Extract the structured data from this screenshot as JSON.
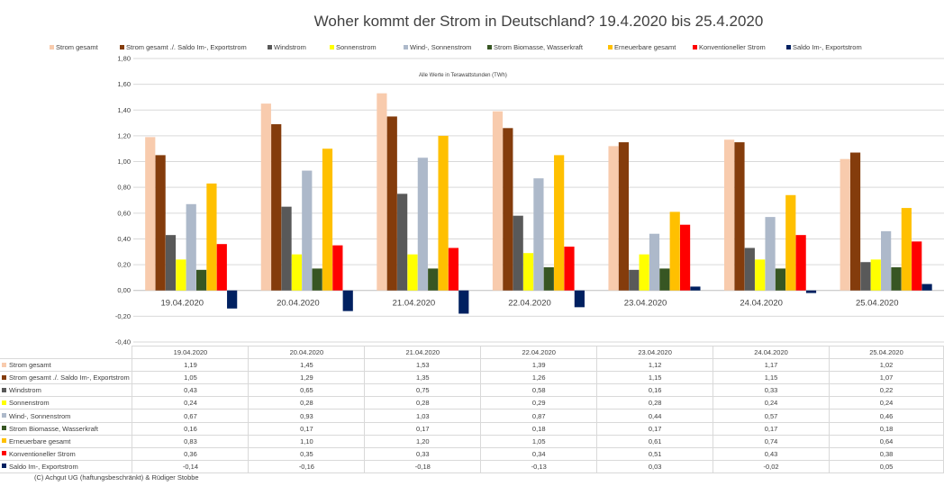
{
  "chart_data": {
    "type": "bar",
    "title": "Woher kommt der Strom in Deutschland? 19.4.2020 bis 25.4.2020",
    "subtitle": "Alle Werte in Terawattstunden (TWh)",
    "xlabel": "",
    "ylabel": "",
    "ylim": [
      -0.4,
      1.8
    ],
    "yticks": [
      "1,80",
      "1,60",
      "1,40",
      "1,20",
      "1,00",
      "0,80",
      "0,60",
      "0,40",
      "0,20",
      "0,00",
      "-0,20",
      "-0,40"
    ],
    "categories": [
      "19.04.2020",
      "20.04.2020",
      "21.04.2020",
      "22.04.2020",
      "23.04.2020",
      "24.04.2020",
      "25.04.2020"
    ],
    "legend_position": "top",
    "series": [
      {
        "name": "Strom gesamt",
        "color": "#f8cbad",
        "values": [
          1.19,
          1.45,
          1.53,
          1.39,
          1.12,
          1.17,
          1.02
        ],
        "labels": [
          "1,19",
          "1,45",
          "1,53",
          "1,39",
          "1,12",
          "1,17",
          "1,02"
        ]
      },
      {
        "name": "Strom gesamt ./. Saldo Im-, Exportstrom",
        "color": "#843c0c",
        "values": [
          1.05,
          1.29,
          1.35,
          1.26,
          1.15,
          1.15,
          1.07
        ],
        "labels": [
          "1,05",
          "1,29",
          "1,35",
          "1,26",
          "1,15",
          "1,15",
          "1,07"
        ]
      },
      {
        "name": "Windstrom",
        "color": "#595959",
        "values": [
          0.43,
          0.65,
          0.75,
          0.58,
          0.16,
          0.33,
          0.22
        ],
        "labels": [
          "0,43",
          "0,65",
          "0,75",
          "0,58",
          "0,16",
          "0,33",
          "0,22"
        ]
      },
      {
        "name": "Sonnenstrom",
        "color": "#ffff00",
        "values": [
          0.24,
          0.28,
          0.28,
          0.29,
          0.28,
          0.24,
          0.24
        ],
        "labels": [
          "0,24",
          "0,28",
          "0,28",
          "0,29",
          "0,28",
          "0,24",
          "0,24"
        ]
      },
      {
        "name": "Wind-, Sonnenstrom",
        "color": "#adb9ca",
        "values": [
          0.67,
          0.93,
          1.03,
          0.87,
          0.44,
          0.57,
          0.46
        ],
        "labels": [
          "0,67",
          "0,93",
          "1,03",
          "0,87",
          "0,44",
          "0,57",
          "0,46"
        ]
      },
      {
        "name": "Strom Biomasse, Wasserkraft",
        "color": "#375623",
        "values": [
          0.16,
          0.17,
          0.17,
          0.18,
          0.17,
          0.17,
          0.18
        ],
        "labels": [
          "0,16",
          "0,17",
          "0,17",
          "0,18",
          "0,17",
          "0,17",
          "0,18"
        ]
      },
      {
        "name": "Erneuerbare gesamt",
        "color": "#ffc000",
        "values": [
          0.83,
          1.1,
          1.2,
          1.05,
          0.61,
          0.74,
          0.64
        ],
        "labels": [
          "0,83",
          "1,10",
          "1,20",
          "1,05",
          "0,61",
          "0,74",
          "0,64"
        ]
      },
      {
        "name": "Konventioneller Strom",
        "color": "#ff0000",
        "values": [
          0.36,
          0.35,
          0.33,
          0.34,
          0.51,
          0.43,
          0.38
        ],
        "labels": [
          "0,36",
          "0,35",
          "0,33",
          "0,34",
          "0,51",
          "0,43",
          "0,38"
        ]
      },
      {
        "name": "Saldo Im-, Exportstrom",
        "color": "#002060",
        "values": [
          -0.14,
          -0.16,
          -0.18,
          -0.13,
          0.03,
          -0.02,
          0.05
        ],
        "labels": [
          "-0,14",
          "-0,16",
          "-0,18",
          "-0,13",
          "0,03",
          "-0,02",
          "0,05"
        ]
      }
    ]
  },
  "copyright": "(C) Achgut UG (haftungsbeschränkt) & Rüdiger Stobbe"
}
